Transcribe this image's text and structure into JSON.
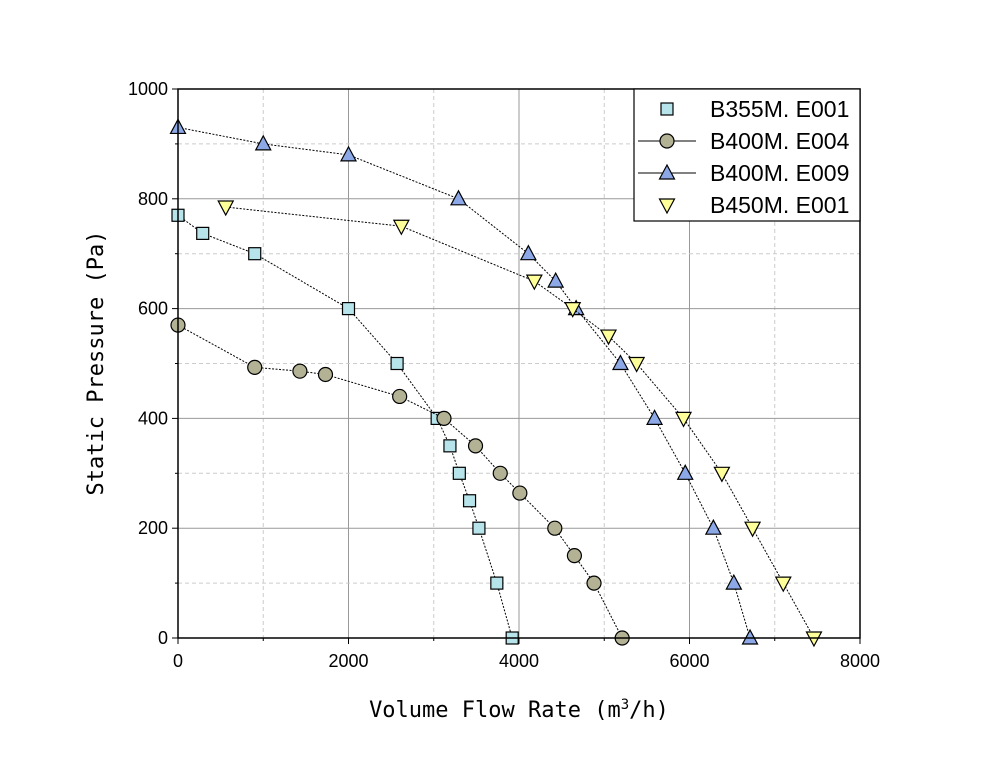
{
  "chart_data": {
    "type": "line",
    "title": "",
    "xlabel": "Volume Flow Rate (m",
    "xlabel_sup": "3",
    "xlabel_end": "/h)",
    "ylabel": "Static Pressure (Pa)",
    "xlim": [
      0,
      8000
    ],
    "ylim": [
      0,
      1000
    ],
    "xticks": [
      "0",
      "2000",
      "4000",
      "6000",
      "8000"
    ],
    "yticks": [
      "0",
      "200",
      "400",
      "600",
      "800",
      "1000"
    ],
    "grid": true,
    "legend_position": "top-right",
    "series": [
      {
        "name": "B355M.E001",
        "marker": "square",
        "color": "#b7e3ea",
        "x": [
          0,
          290,
          900,
          2000,
          2570,
          3040,
          3190,
          3300,
          3420,
          3530,
          3740,
          3920
        ],
        "y": [
          770,
          737,
          700,
          600,
          500,
          400,
          350,
          300,
          250,
          200,
          100,
          0
        ]
      },
      {
        "name": "B400M.E004",
        "marker": "circle",
        "color": "#b4b294",
        "x": [
          0,
          900,
          1430,
          1730,
          2600,
          3120,
          3490,
          3780,
          4010,
          4420,
          4650,
          4880,
          5210
        ],
        "y": [
          570,
          493,
          486,
          480,
          440,
          400,
          350,
          300,
          264,
          200,
          150,
          100,
          0
        ]
      },
      {
        "name": "B400M.E009",
        "marker": "triangle-up",
        "color": "#8ca8e6",
        "x": [
          0,
          1000,
          2000,
          3290,
          4110,
          4430,
          4670,
          5190,
          5590,
          5950,
          6280,
          6520,
          6710
        ],
        "y": [
          930,
          900,
          880,
          800,
          700,
          650,
          600,
          500,
          400,
          300,
          200,
          100,
          0
        ]
      },
      {
        "name": "B450M.E001",
        "marker": "triangle-down",
        "color": "#ffff99",
        "x": [
          560,
          2620,
          4180,
          4630,
          5050,
          5380,
          5930,
          6380,
          6740,
          7100,
          7460
        ],
        "y": [
          785,
          750,
          650,
          600,
          550,
          500,
          400,
          300,
          200,
          100,
          0
        ]
      }
    ]
  }
}
